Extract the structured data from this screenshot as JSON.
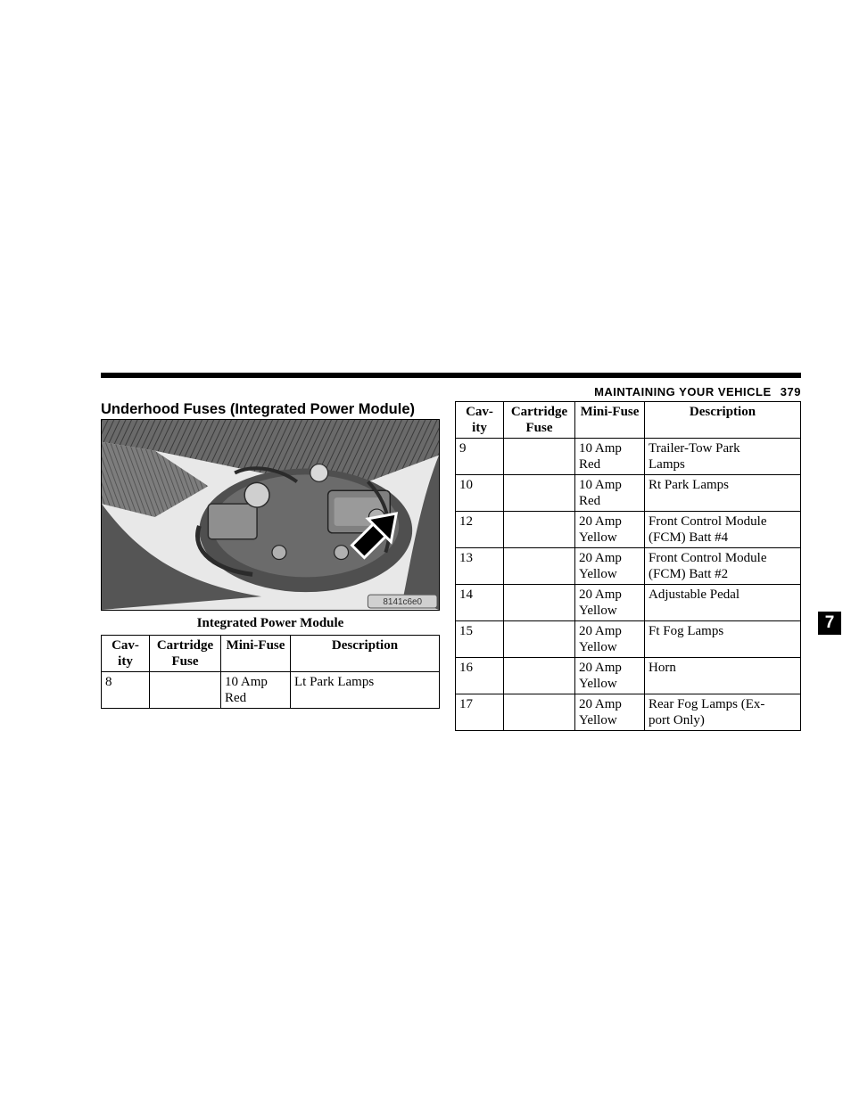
{
  "running_head": {
    "text": "MAINTAINING YOUR VEHICLE",
    "page": "379"
  },
  "section_title": "Underhood Fuses (Integrated Power Module)",
  "figure": {
    "caption": "Integrated Power Module",
    "image_code": "8141c6e0"
  },
  "thumb_tab": "7",
  "table_headers": {
    "cavity": "Cav-\nity",
    "cartridge": "Cartridge\nFuse",
    "mini": "Mini-Fuse",
    "desc": "Description"
  },
  "left_rows": [
    {
      "cavity": "8",
      "cartridge": "",
      "mini": "10 Amp\nRed",
      "desc": "Lt Park Lamps"
    }
  ],
  "right_rows": [
    {
      "cavity": "9",
      "cartridge": "",
      "mini": "10 Amp\nRed",
      "desc": "Trailer-Tow Park\nLamps"
    },
    {
      "cavity": "10",
      "cartridge": "",
      "mini": "10 Amp\nRed",
      "desc": "Rt Park Lamps"
    },
    {
      "cavity": "12",
      "cartridge": "",
      "mini": "20 Amp\nYellow",
      "desc": "Front Control Module\n(FCM) Batt #4"
    },
    {
      "cavity": "13",
      "cartridge": "",
      "mini": "20 Amp\nYellow",
      "desc": "Front Control Module\n(FCM) Batt #2"
    },
    {
      "cavity": "14",
      "cartridge": "",
      "mini": "20 Amp\nYellow",
      "desc": "Adjustable Pedal"
    },
    {
      "cavity": "15",
      "cartridge": "",
      "mini": "20 Amp\nYellow",
      "desc": "Ft Fog Lamps"
    },
    {
      "cavity": "16",
      "cartridge": "",
      "mini": "20 Amp\nYellow",
      "desc": "Horn"
    },
    {
      "cavity": "17",
      "cartridge": "",
      "mini": "20 Amp\nYellow",
      "desc": "Rear Fog Lamps (Ex-\nport Only)"
    }
  ]
}
